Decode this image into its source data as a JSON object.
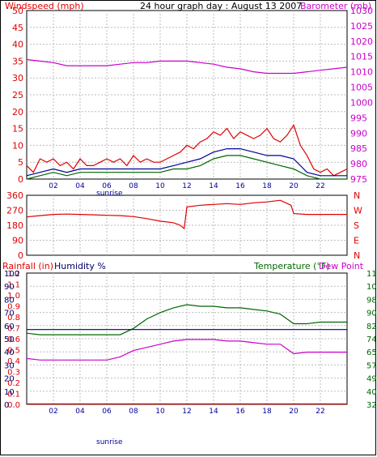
{
  "colors": {
    "red": "#e00000",
    "magenta": "#cc00cc",
    "blue": "#000099",
    "navy": "#00006a",
    "green": "#006600",
    "grid": "#bdbdbd"
  },
  "chart_data": [
    {
      "type": "line",
      "title": "24 hour graph day : August 13 2007",
      "y_left_label": "Windspeed (mph)",
      "y_right_label": "Barometer (mb)",
      "x_ticks": [
        "02",
        "04",
        "06",
        "08",
        "10",
        "12",
        "14",
        "16",
        "18",
        "20",
        "22"
      ],
      "x_extra_label": "sunrise",
      "y_left_ticks": [
        "0",
        "5",
        "10",
        "15",
        "20",
        "25",
        "30",
        "35",
        "40",
        "45",
        "50"
      ],
      "y_right_ticks": [
        "975",
        "980",
        "985",
        "990",
        "995",
        "1000",
        "1005",
        "1010",
        "1015",
        "1020",
        "1025",
        "1030"
      ],
      "ylim_left": [
        0,
        50
      ],
      "ylim_right": [
        975,
        1030
      ],
      "grid": true,
      "series": [
        {
          "axis": "right",
          "color": "#cc00cc",
          "x": [
            0,
            1,
            2,
            3,
            4,
            5,
            6,
            7,
            8,
            9,
            10,
            11,
            12,
            13,
            14,
            15,
            16,
            17,
            18,
            19,
            20,
            21,
            22,
            23,
            24
          ],
          "y": [
            1014,
            1013.5,
            1013,
            1012,
            1012,
            1012,
            1012,
            1012.5,
            1013,
            1013,
            1013.5,
            1013.5,
            1013.5,
            1013,
            1012.5,
            1011.5,
            1011,
            1010,
            1009.5,
            1009.5,
            1009.5,
            1010,
            1010.5,
            1011,
            1011.5
          ]
        },
        {
          "axis": "left",
          "color": "#e00000",
          "x": [
            0,
            0.5,
            1,
            1.5,
            2,
            2.5,
            3,
            3.5,
            4,
            4.5,
            5,
            5.5,
            6,
            6.5,
            7,
            7.5,
            8,
            8.5,
            9,
            9.5,
            10,
            10.5,
            11,
            11.5,
            12,
            12.5,
            13,
            13.5,
            14,
            14.5,
            15,
            15.5,
            16,
            16.5,
            17,
            17.5,
            18,
            18.5,
            19,
            19.5,
            20,
            20.5,
            21,
            21.5,
            22,
            22.5,
            23,
            23.5,
            24
          ],
          "y": [
            4,
            2,
            6,
            5,
            6,
            4,
            5,
            3,
            6,
            4,
            4,
            5,
            6,
            5,
            6,
            4,
            7,
            5,
            6,
            5,
            5,
            6,
            7,
            8,
            10,
            9,
            11,
            12,
            14,
            13,
            15,
            12,
            14,
            13,
            12,
            13,
            15,
            12,
            11,
            13,
            16,
            10,
            7,
            3,
            2,
            3,
            1,
            2,
            3
          ]
        },
        {
          "axis": "left",
          "color": "#000099",
          "x": [
            0,
            1,
            2,
            3,
            4,
            5,
            6,
            7,
            8,
            9,
            10,
            11,
            12,
            13,
            14,
            15,
            16,
            17,
            18,
            19,
            20,
            21,
            22,
            23,
            24
          ],
          "y": [
            1,
            2,
            3,
            2,
            3,
            3,
            3,
            3,
            3,
            3,
            3,
            4,
            5,
            6,
            8,
            9,
            9,
            8,
            7,
            7,
            6,
            2,
            1,
            1,
            1
          ]
        },
        {
          "axis": "left",
          "color": "#006600",
          "x": [
            0,
            1,
            2,
            3,
            4,
            5,
            6,
            7,
            8,
            9,
            10,
            11,
            12,
            13,
            14,
            15,
            16,
            17,
            18,
            19,
            20,
            21,
            22,
            23,
            24
          ],
          "y": [
            0,
            1,
            2,
            1,
            2,
            2,
            2,
            2,
            2,
            2,
            2,
            3,
            3,
            4,
            6,
            7,
            7,
            6,
            5,
            4,
            3,
            1,
            0,
            0,
            0
          ]
        }
      ]
    },
    {
      "type": "line",
      "y_ticks": [
        "0",
        "90",
        "180",
        "270",
        "360"
      ],
      "y_right_ticks": [
        "N",
        "E",
        "S",
        "W",
        "N"
      ],
      "ylim": [
        0,
        360
      ],
      "grid": true,
      "series": [
        {
          "color": "#e00000",
          "x": [
            0,
            1,
            2,
            3,
            4,
            5,
            6,
            7,
            8,
            9,
            10,
            11,
            11.5,
            11.8,
            12,
            13,
            14,
            15,
            16,
            17,
            18,
            19,
            19.8,
            20,
            21,
            22,
            23,
            24
          ],
          "y": [
            230,
            238,
            245,
            247,
            245,
            243,
            240,
            238,
            232,
            220,
            205,
            195,
            180,
            160,
            290,
            300,
            305,
            310,
            305,
            315,
            320,
            330,
            300,
            250,
            245,
            245,
            245,
            245
          ]
        }
      ]
    },
    {
      "type": "line",
      "y_left_label": "Rainfall (in)",
      "y_left2_label": "Humidity %",
      "y_right_label": "Temperature (°F)",
      "y_right2_label": "Dew Point",
      "x_ticks": [
        "02",
        "04",
        "06",
        "08",
        "10",
        "12",
        "14",
        "16",
        "18",
        "20",
        "22"
      ],
      "x_extra_label": "sunrise",
      "rain_ticks": [
        "0.0",
        "0.1",
        "0.2",
        "0.3",
        "0.4",
        "0.5",
        "0.6",
        "0.7",
        "0.8",
        "0.9",
        "1.0",
        "1.1",
        "1.2"
      ],
      "humidity_ticks": [
        "0",
        "10",
        "20",
        "30",
        "40",
        "50",
        "60",
        "70",
        "80",
        "90",
        "100"
      ],
      "temp_ticks": [
        "32",
        "40",
        "49",
        "57",
        "65",
        "74",
        "82",
        "90",
        "98",
        "107",
        "115"
      ],
      "ylim_temp": [
        32,
        115
      ],
      "grid": true,
      "series": [
        {
          "name": "Temperature",
          "color": "#006600",
          "x": [
            0,
            1,
            2,
            3,
            4,
            5,
            6,
            7,
            8,
            9,
            10,
            11,
            12,
            13,
            14,
            15,
            16,
            17,
            18,
            19,
            19.5,
            20,
            21,
            22,
            23,
            24
          ],
          "y": [
            77,
            76,
            76,
            76,
            76,
            76,
            76,
            76,
            80,
            86,
            90,
            93,
            95,
            94,
            94,
            93,
            93,
            92,
            91,
            89,
            86,
            83,
            83,
            84,
            84,
            84
          ]
        },
        {
          "name": "Dew Point",
          "color": "#cc00cc",
          "x": [
            0,
            1,
            2,
            3,
            4,
            5,
            6,
            7,
            8,
            9,
            10,
            11,
            12,
            13,
            14,
            15,
            16,
            17,
            18,
            19,
            19.5,
            20,
            21,
            22,
            23,
            24
          ],
          "y": [
            61,
            60,
            60,
            60,
            60,
            60,
            60,
            62,
            66,
            68,
            70,
            72,
            73,
            73,
            73,
            72,
            72,
            71,
            70,
            70,
            67,
            64,
            65,
            65,
            65,
            65
          ]
        },
        {
          "name": "Humidity",
          "color": "#00006a",
          "x": [
            0,
            24
          ],
          "y": [
            57,
            57
          ]
        },
        {
          "name": "Rainfall",
          "color": "#e00000",
          "x": [
            0,
            24
          ],
          "y": [
            0,
            0
          ]
        }
      ]
    }
  ]
}
